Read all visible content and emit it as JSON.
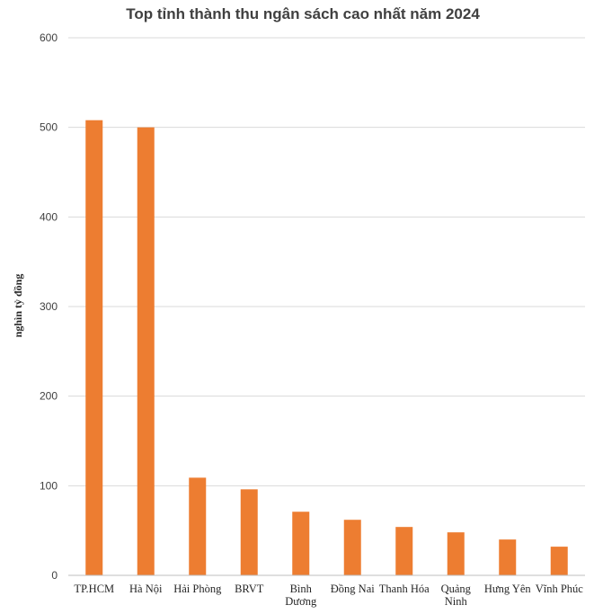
{
  "chart_data": {
    "type": "bar",
    "title": "Top tỉnh thành thu ngân sách cao nhất năm 2024",
    "xlabel": "",
    "ylabel": "nghìn tỷ đồng",
    "categories": [
      [
        "TP.HCM"
      ],
      [
        "Hà Nội"
      ],
      [
        "Hải Phòng"
      ],
      [
        "BRVT"
      ],
      [
        "Bình",
        "Dương"
      ],
      [
        "Đồng Nai"
      ],
      [
        "Thanh Hóa"
      ],
      [
        "Quảng",
        "Ninh"
      ],
      [
        "Hưng Yên"
      ],
      [
        "Vĩnh Phúc"
      ]
    ],
    "values": [
      508,
      500,
      109,
      96,
      71,
      62,
      54,
      48,
      40,
      32
    ],
    "ylim": [
      0,
      600
    ],
    "yticks": [
      0,
      100,
      200,
      300,
      400,
      500,
      600
    ],
    "grid": true,
    "bar_color": "#ED7D31"
  }
}
